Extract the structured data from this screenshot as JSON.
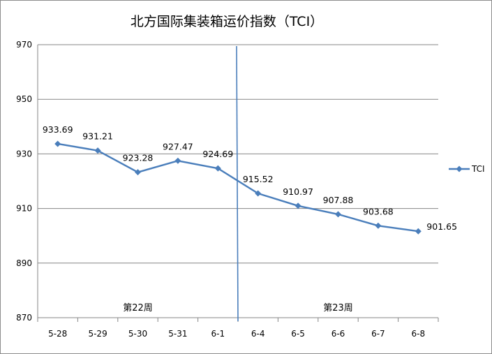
{
  "chart_data": {
    "type": "line",
    "title": "北方国际集装箱运价指数（TCI）",
    "categories": [
      "5-28",
      "5-29",
      "5-30",
      "5-31",
      "6-1",
      "6-4",
      "6-5",
      "6-6",
      "6-7",
      "6-8"
    ],
    "series": [
      {
        "name": "TCI",
        "values": [
          933.69,
          931.21,
          923.28,
          927.47,
          924.69,
          915.52,
          910.97,
          907.88,
          903.68,
          901.65
        ],
        "color": "#4a7ebb"
      }
    ],
    "data_labels": [
      "933.69",
      "931.21",
      "923.28",
      "927.47",
      "924.69",
      "915.52",
      "910.97",
      "907.88",
      "903.68",
      "901.65"
    ],
    "ylim": [
      870,
      970
    ],
    "yticks": [
      870,
      890,
      910,
      930,
      950,
      970
    ],
    "grid": true,
    "legend": "right",
    "week_labels": [
      "第22周",
      "第23周"
    ],
    "divider_color": "#4a7ebb"
  }
}
